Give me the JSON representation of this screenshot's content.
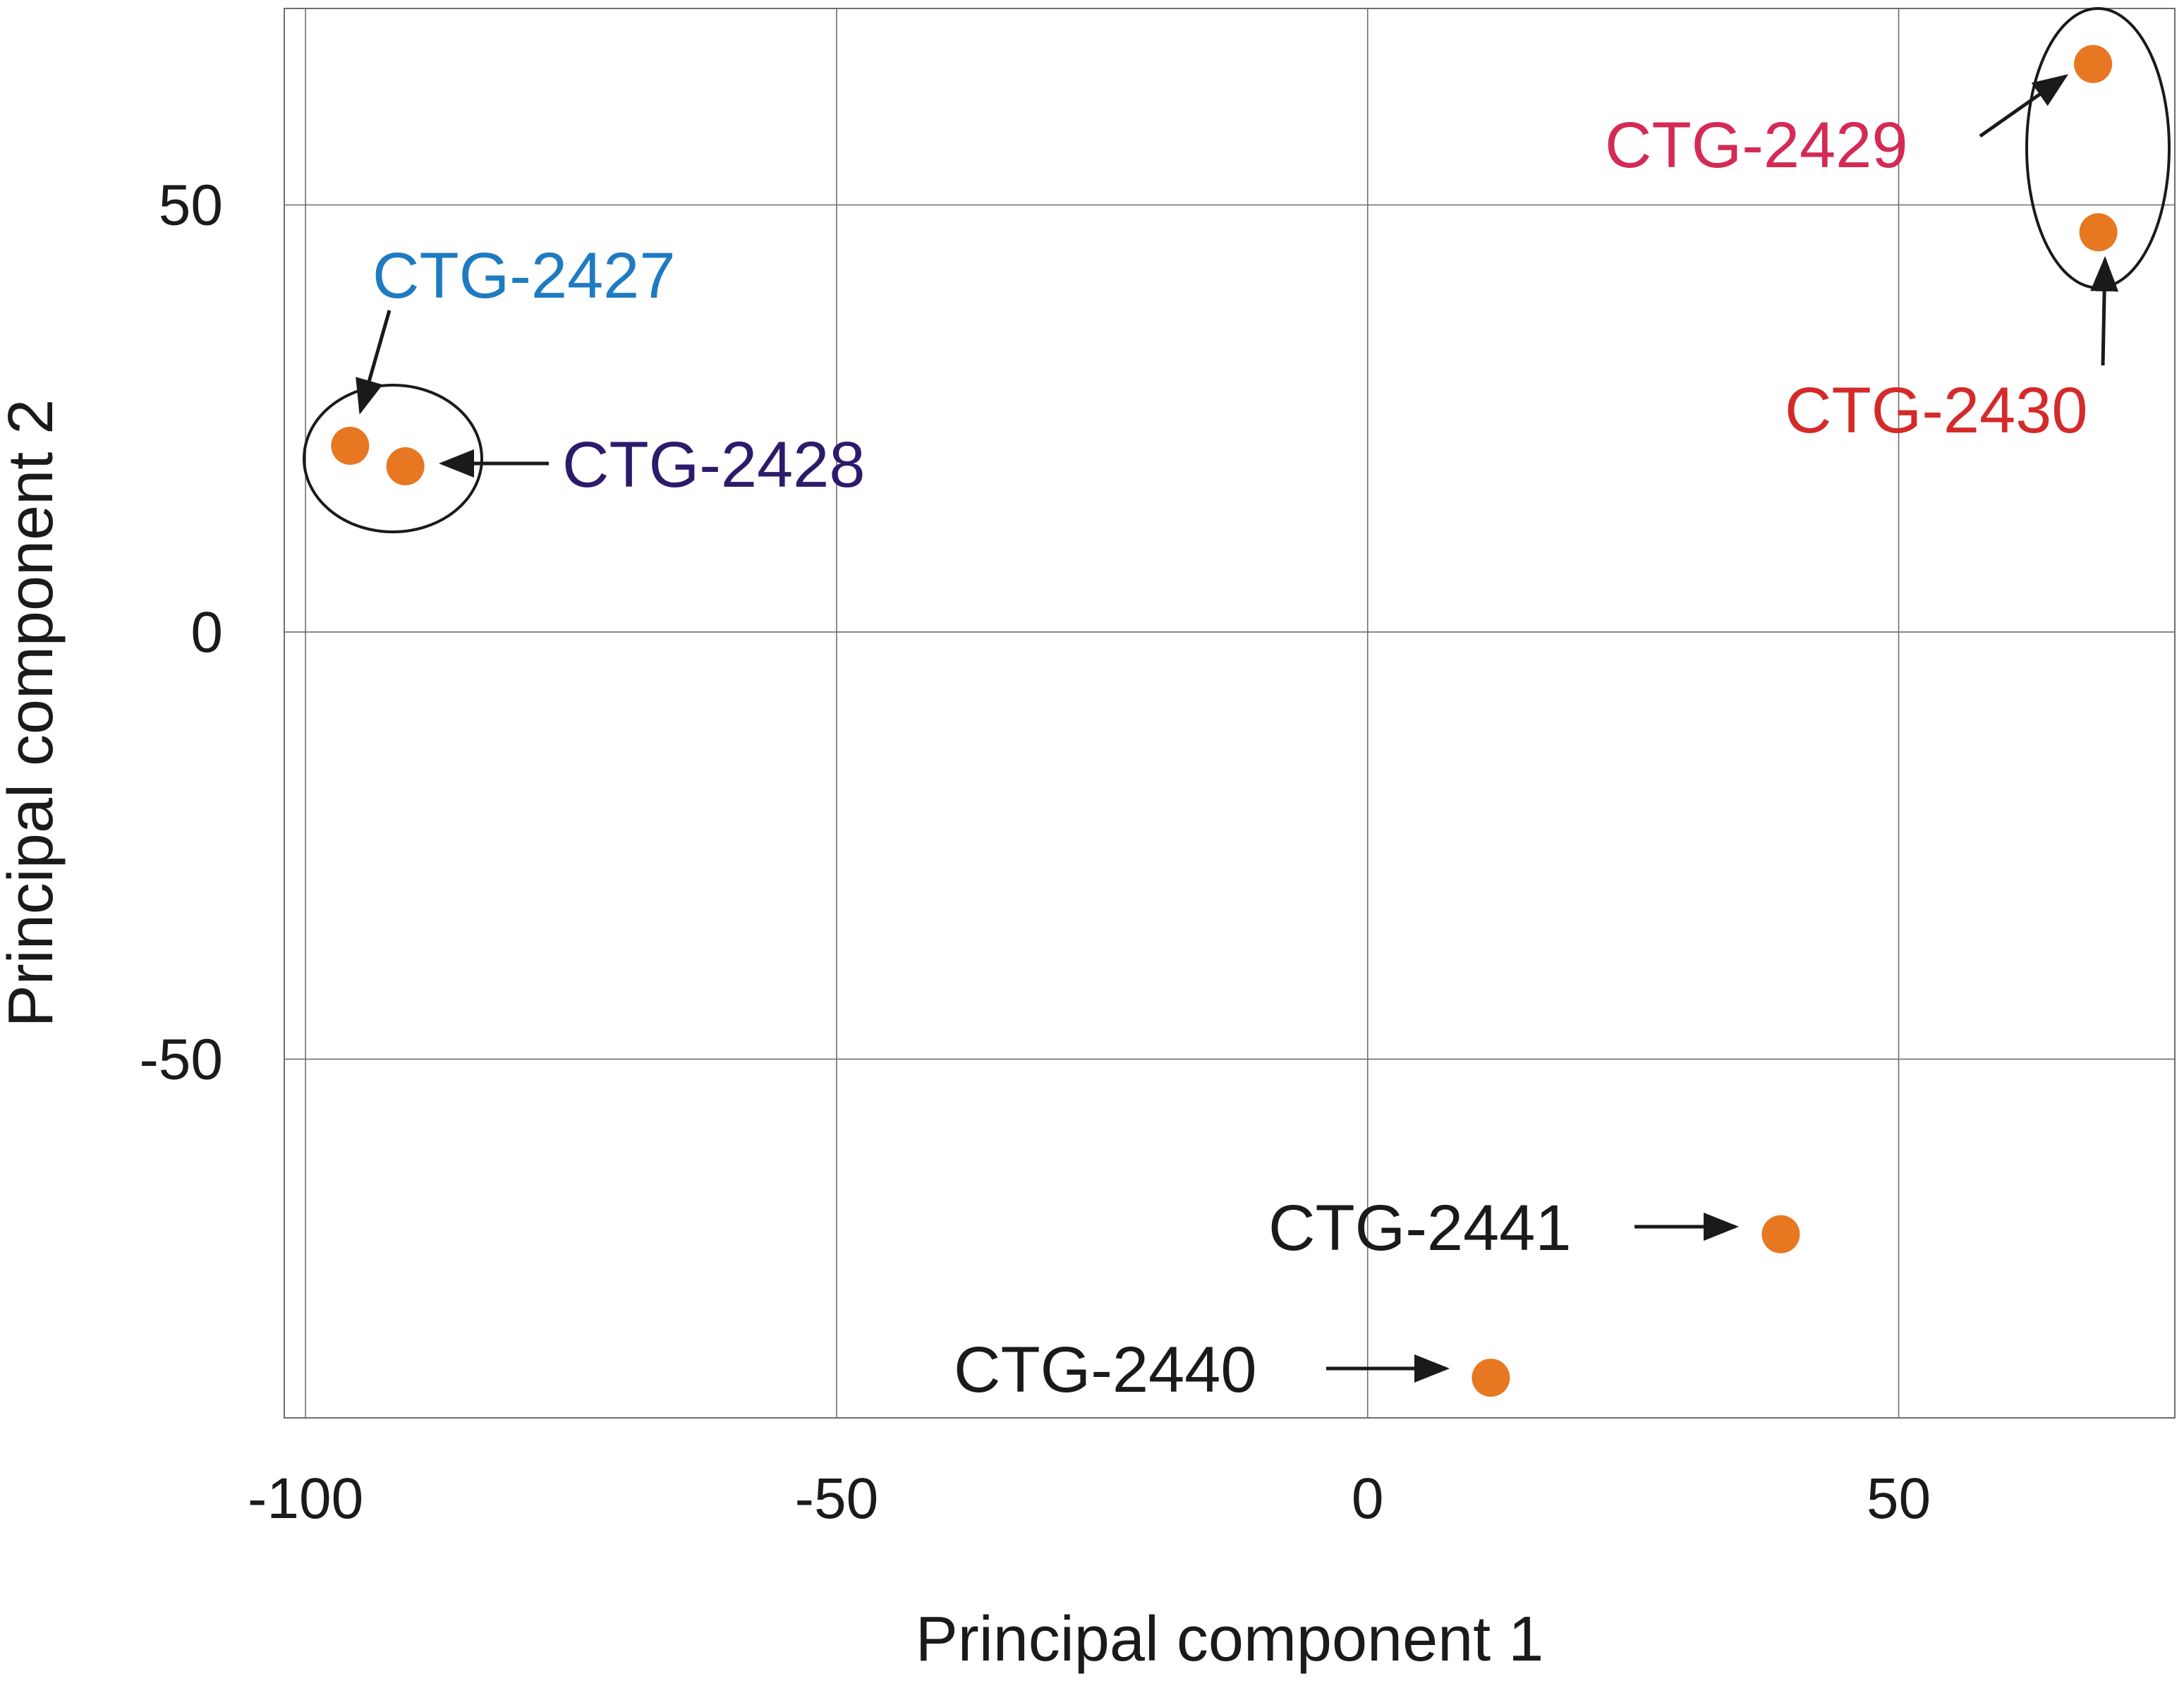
{
  "chart_data": {
    "type": "scatter",
    "title": "",
    "xlabel": "Principal component 1",
    "ylabel": "Principal component 2",
    "xlim": [
      -102,
      76
    ],
    "ylim": [
      -92,
      73
    ],
    "xticks": [
      -100,
      -50,
      0,
      50
    ],
    "yticks": [
      -50,
      0,
      50
    ],
    "grid": true,
    "marker_color": "#E87722",
    "points": [
      {
        "label": "CTG-2427",
        "x": -95.8,
        "y": 21.8,
        "label_color": "#1E7BC1"
      },
      {
        "label": "CTG-2428",
        "x": -90.6,
        "y": 19.4,
        "label_color": "#2E1A6B"
      },
      {
        "label": "CTG-2429",
        "x": 68.3,
        "y": 66.5,
        "label_color": "#D42A55"
      },
      {
        "label": "CTG-2430",
        "x": 68.8,
        "y": 46.8,
        "label_color": "#D42A2A"
      },
      {
        "label": "CTG-2441",
        "x": 38.9,
        "y": -70.5,
        "label_color": "#1a1a1a"
      },
      {
        "label": "CTG-2440",
        "x": 11.6,
        "y": -87.3,
        "label_color": "#1a1a1a"
      }
    ]
  }
}
